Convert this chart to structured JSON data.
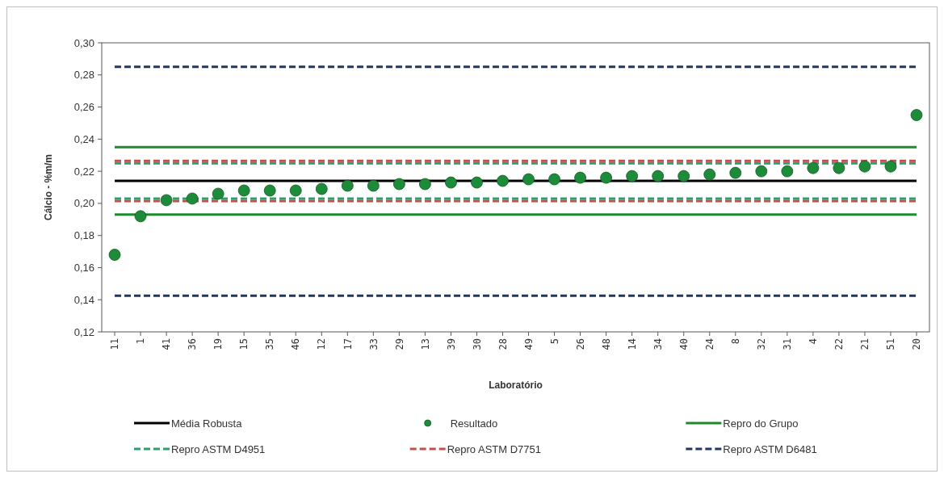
{
  "chart_data": {
    "type": "scatter",
    "xlabel": "Laboratório",
    "ylabel": "Cálcio - %m/m",
    "categories": [
      "11",
      "1",
      "41",
      "36",
      "19",
      "15",
      "35",
      "46",
      "12",
      "17",
      "33",
      "29",
      "13",
      "39",
      "30",
      "28",
      "49",
      "5",
      "26",
      "48",
      "14",
      "34",
      "40",
      "24",
      "8",
      "32",
      "31",
      "4",
      "22",
      "21",
      "51",
      "20"
    ],
    "ylim": [
      0.12,
      0.3
    ],
    "yticks": [
      {
        "value": 0.12,
        "label": "0,12"
      },
      {
        "value": 0.14,
        "label": "0,14"
      },
      {
        "value": 0.16,
        "label": "0,16"
      },
      {
        "value": 0.18,
        "label": "0,18"
      },
      {
        "value": 0.2,
        "label": "0,20"
      },
      {
        "value": 0.22,
        "label": "0,22"
      },
      {
        "value": 0.24,
        "label": "0,24"
      },
      {
        "value": 0.26,
        "label": "0,26"
      },
      {
        "value": 0.28,
        "label": "0,28"
      },
      {
        "value": 0.3,
        "label": "0,30"
      }
    ],
    "legend": "bottom",
    "grid": false,
    "series": [
      {
        "name": "Média Robusta",
        "type": "line",
        "line_style": "solid",
        "color": "#000000",
        "values": [
          0.214,
          0.214,
          0.214,
          0.214,
          0.214,
          0.214,
          0.214,
          0.214,
          0.214,
          0.214,
          0.214,
          0.214,
          0.214,
          0.214,
          0.214,
          0.214,
          0.214,
          0.214,
          0.214,
          0.214,
          0.214,
          0.214,
          0.214,
          0.214,
          0.214,
          0.214,
          0.214,
          0.214,
          0.214,
          0.214,
          0.214,
          0.214
        ]
      },
      {
        "name": "Resultado",
        "marker": "circle",
        "color": "#1e8b3a",
        "values": [
          0.168,
          0.192,
          0.202,
          0.203,
          0.206,
          0.208,
          0.208,
          0.208,
          0.209,
          0.211,
          0.211,
          0.212,
          0.212,
          0.213,
          0.213,
          0.214,
          0.215,
          0.215,
          0.216,
          0.216,
          0.217,
          0.217,
          0.217,
          0.218,
          0.219,
          0.22,
          0.22,
          0.222,
          0.222,
          0.223,
          0.223,
          0.255
        ]
      },
      {
        "name": "Repro do Grupo",
        "type": "line",
        "line_style": "solid",
        "color": "#1f8a2e",
        "values": [
          0.235,
          0.235,
          0.235,
          0.235,
          0.235,
          0.235,
          0.235,
          0.235,
          0.235,
          0.235,
          0.235,
          0.235,
          0.235,
          0.235,
          0.235,
          0.235,
          0.235,
          0.235,
          0.235,
          0.235,
          0.235,
          0.235,
          0.235,
          0.235,
          0.235,
          0.235,
          0.235,
          0.235,
          0.235,
          0.235,
          0.235,
          0.235
        ]
      },
      {
        "name": "Repro ASTM D4951",
        "type": "line",
        "line_style": "dashed",
        "color": "#2e9e6e",
        "values": [
          0.225,
          0.225,
          0.225,
          0.225,
          0.225,
          0.225,
          0.225,
          0.225,
          0.225,
          0.225,
          0.225,
          0.225,
          0.225,
          0.225,
          0.225,
          0.225,
          0.225,
          0.225,
          0.225,
          0.225,
          0.225,
          0.225,
          0.225,
          0.225,
          0.225,
          0.225,
          0.225,
          0.225,
          0.225,
          0.225,
          0.225,
          0.225
        ]
      },
      {
        "name": "Repro ASTM D7751",
        "type": "line",
        "line_style": "dashed",
        "color": "#c0504d",
        "values": [
          0.2265,
          0.2265,
          0.2265,
          0.2265,
          0.2265,
          0.2265,
          0.2265,
          0.2265,
          0.2265,
          0.2265,
          0.2265,
          0.2265,
          0.2265,
          0.2265,
          0.2265,
          0.2265,
          0.2265,
          0.2265,
          0.2265,
          0.2265,
          0.2265,
          0.2265,
          0.2265,
          0.2265,
          0.2265,
          0.2265,
          0.2265,
          0.2265,
          0.2265,
          0.2265,
          0.2265,
          0.2265
        ]
      },
      {
        "name": "Repro ASTM D6481",
        "type": "line",
        "line_style": "dashed",
        "color": "#1f3864",
        "values": [
          0.285,
          0.285,
          0.285,
          0.285,
          0.285,
          0.285,
          0.285,
          0.285,
          0.285,
          0.285,
          0.285,
          0.285,
          0.285,
          0.285,
          0.285,
          0.285,
          0.285,
          0.285,
          0.285,
          0.285,
          0.285,
          0.285,
          0.285,
          0.285,
          0.285,
          0.285,
          0.285,
          0.285,
          0.285,
          0.285,
          0.285,
          0.285
        ]
      },
      {
        "type": "line",
        "line_style": "solid",
        "color": "#1f8a2e",
        "values": [
          0.193,
          0.193,
          0.193,
          0.193,
          0.193,
          0.193,
          0.193,
          0.193,
          0.193,
          0.193,
          0.193,
          0.193,
          0.193,
          0.193,
          0.193,
          0.193,
          0.193,
          0.193,
          0.193,
          0.193,
          0.193,
          0.193,
          0.193,
          0.193,
          0.193,
          0.193,
          0.193,
          0.193,
          0.193,
          0.193,
          0.193,
          0.193
        ]
      },
      {
        "type": "line",
        "line_style": "dashed",
        "color": "#2e9e6e",
        "values": [
          0.203,
          0.203,
          0.203,
          0.203,
          0.203,
          0.203,
          0.203,
          0.203,
          0.203,
          0.203,
          0.203,
          0.203,
          0.203,
          0.203,
          0.203,
          0.203,
          0.203,
          0.203,
          0.203,
          0.203,
          0.203,
          0.203,
          0.203,
          0.203,
          0.203,
          0.203,
          0.203,
          0.203,
          0.203,
          0.203,
          0.203,
          0.203
        ]
      },
      {
        "type": "line",
        "line_style": "dashed",
        "color": "#c0504d",
        "values": [
          0.2015,
          0.2015,
          0.2015,
          0.2015,
          0.2015,
          0.2015,
          0.2015,
          0.2015,
          0.2015,
          0.2015,
          0.2015,
          0.2015,
          0.2015,
          0.2015,
          0.2015,
          0.2015,
          0.2015,
          0.2015,
          0.2015,
          0.2015,
          0.2015,
          0.2015,
          0.2015,
          0.2015,
          0.2015,
          0.2015,
          0.2015,
          0.2015,
          0.2015,
          0.2015,
          0.2015,
          0.2015
        ]
      },
      {
        "type": "line",
        "line_style": "dashed",
        "color": "#1f3864",
        "values": [
          0.1425,
          0.1425,
          0.1425,
          0.1425,
          0.1425,
          0.1425,
          0.1425,
          0.1425,
          0.1425,
          0.1425,
          0.1425,
          0.1425,
          0.1425,
          0.1425,
          0.1425,
          0.1425,
          0.1425,
          0.1425,
          0.1425,
          0.1425,
          0.1425,
          0.1425,
          0.1425,
          0.1425,
          0.1425,
          0.1425,
          0.1425,
          0.1425,
          0.1425,
          0.1425,
          0.1425,
          0.1425
        ]
      }
    ]
  }
}
